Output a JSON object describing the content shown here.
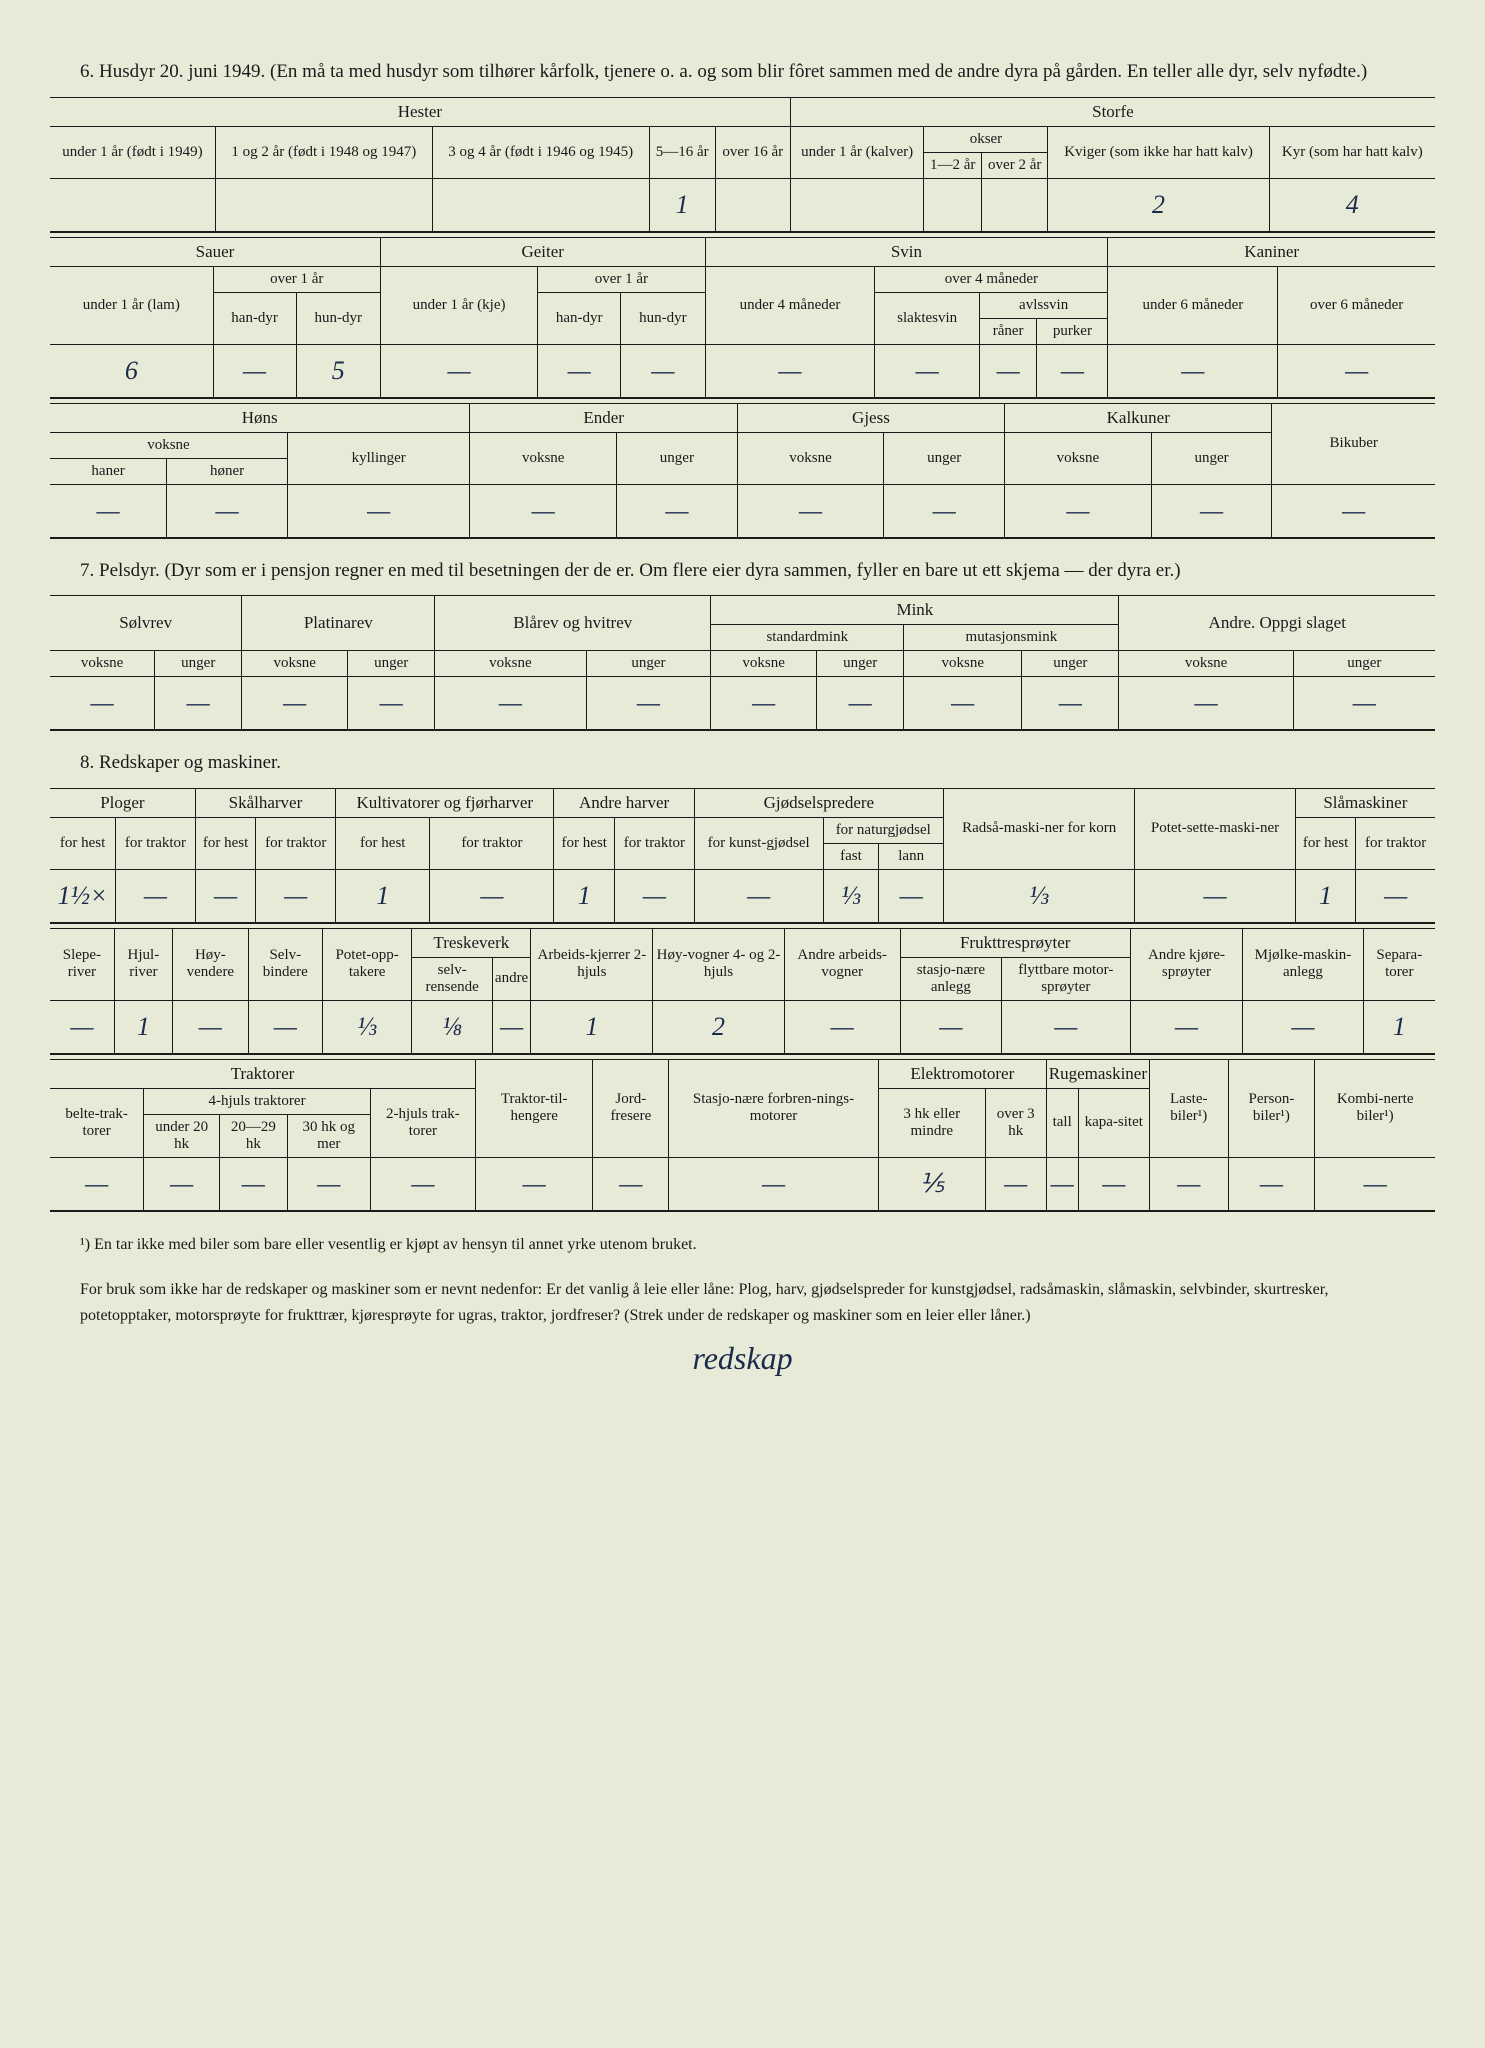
{
  "section6": {
    "title": "6. Husdyr 20. juni 1949. (En må ta med husdyr som tilhører kårfolk, tjenere o. a. og som blir fôret sammen med de andre dyra på gården. En teller alle dyr, selv nyfødte.)",
    "hester": {
      "group": "Hester",
      "cols": [
        "under 1 år (født i 1949)",
        "1 og 2 år (født i 1948 og 1947)",
        "3 og 4 år (født i 1946 og 1945)",
        "5—16 år",
        "over 16 år"
      ],
      "values": [
        "",
        "",
        "",
        "1",
        ""
      ]
    },
    "storfe": {
      "group": "Storfe",
      "under1": "under 1 år (kalver)",
      "okser": {
        "label": "okser",
        "c1": "1—2 år",
        "c2": "over 2 år"
      },
      "kviger": "Kviger (som ikke har hatt kalv)",
      "kyr": "Kyr (som har hatt kalv)",
      "values": [
        "",
        "",
        "",
        "2",
        "4"
      ]
    },
    "sauer": {
      "group": "Sauer",
      "under1": "under 1 år (lam)",
      "over1": "over 1 år",
      "han": "han-dyr",
      "hun": "hun-dyr",
      "values": [
        "6",
        "—",
        "5"
      ]
    },
    "geiter": {
      "group": "Geiter",
      "under1": "under 1 år (kje)",
      "over1": "over 1 år",
      "han": "han-dyr",
      "hun": "hun-dyr",
      "values": [
        "—",
        "—",
        "—"
      ]
    },
    "svin": {
      "group": "Svin",
      "under4": "under 4 måneder",
      "over4": "over 4 måneder",
      "slaktesvin": "slaktesvin",
      "avlssvin": "avlssvin",
      "raner": "råner",
      "purker": "purker",
      "values": [
        "—",
        "—",
        "—",
        "—"
      ]
    },
    "kaniner": {
      "group": "Kaniner",
      "under6": "under 6 måneder",
      "over6": "over 6 måneder",
      "values": [
        "—",
        "—"
      ]
    },
    "hons": {
      "group": "Høns",
      "voksne": "voksne",
      "haner": "haner",
      "honer": "høner",
      "kyllinger": "kyllinger",
      "values": [
        "—",
        "—",
        "—"
      ]
    },
    "ender": {
      "group": "Ender",
      "voksne": "voksne",
      "unger": "unger",
      "values": [
        "—",
        "—"
      ]
    },
    "gjess": {
      "group": "Gjess",
      "voksne": "voksne",
      "unger": "unger",
      "values": [
        "—",
        "—"
      ]
    },
    "kalkuner": {
      "group": "Kalkuner",
      "voksne": "voksne",
      "unger": "unger",
      "values": [
        "—",
        "—"
      ]
    },
    "bikuber": {
      "label": "Bikuber",
      "value": "—"
    }
  },
  "section7": {
    "title": "7. Pelsdyr. (Dyr som er i pensjon regner en med til besetningen der de er. Om flere eier dyra sammen, fyller en bare ut ett skjema — der dyra er.)",
    "groups": {
      "solvrev": "Sølvrev",
      "platinarev": "Platinarev",
      "blarev": "Blårev og hvitrev",
      "mink": "Mink",
      "standardmink": "standardmink",
      "mutasjonsmink": "mutasjonsmink",
      "andre": "Andre. Oppgi slaget"
    },
    "voksne": "voksne",
    "unger": "unger",
    "values": [
      "—",
      "—",
      "—",
      "—",
      "—",
      "—",
      "—",
      "—",
      "—",
      "—",
      "—",
      "—"
    ]
  },
  "section8": {
    "title": "8. Redskaper og maskiner.",
    "row1": {
      "groups": {
        "ploger": "Ploger",
        "skalharver": "Skålharver",
        "kultiv": "Kultivatorer og fjørharver",
        "andreharver": "Andre harver",
        "gjodsel": "Gjødselspredere",
        "radsa": "Radså-maski-ner for korn",
        "potet": "Potet-sette-maski-ner",
        "slamask": "Slåmaskiner"
      },
      "sub": {
        "forhest": "for hest",
        "fortraktor": "for traktor",
        "kunstgj": "for kunst-gjødsel",
        "naturgj": "for naturgjødsel",
        "fast": "fast",
        "lann": "lann"
      },
      "values": [
        "1½×",
        "—",
        "—",
        "—",
        "1",
        "—",
        "1",
        "—",
        "—",
        "⅓",
        "—",
        "⅓",
        "—",
        "1",
        "—"
      ]
    },
    "row2": {
      "groups": {
        "sleperiver": "Slepe-river",
        "hjulriver": "Hjul-river",
        "hoyvendere": "Høy-vendere",
        "selvbindere": "Selv-bindere",
        "potetopp": "Potet-opp-takere",
        "treskeverk": "Treskeverk",
        "selvrens": "selv-rensende",
        "tr_andre": "andre",
        "arbeidskj": "Arbeids-kjerrer 2-hjuls",
        "hoyvogner": "Høy-vogner 4- og 2-hjuls",
        "andrearbv": "Andre arbeids-vogner",
        "fruktspr": "Frukttresprøyter",
        "stasjanl": "stasjo-nære anlegg",
        "flyttbare": "flyttbare motor-sprøyter",
        "andrekjspr": "Andre kjøre-sprøyter",
        "mjolke": "Mjølke-maskin-anlegg",
        "separa": "Separa-torer"
      },
      "values": [
        "—",
        "1",
        "—",
        "—",
        "⅓",
        "⅛",
        "—",
        "1",
        "2",
        "—",
        "—",
        "—",
        "—",
        "—",
        "1"
      ]
    },
    "row3": {
      "groups": {
        "traktorer": "Traktorer",
        "beltetrak": "belte-trak-torer",
        "firehj": "4-hjuls traktorer",
        "under20": "under 20 hk",
        "hk2029": "20—29 hk",
        "hk30mer": "30 hk og mer",
        "tohjuls": "2-hjuls trak-torer",
        "traktilh": "Traktor-til-hengere",
        "jordfres": "Jord-fresere",
        "stasjforbr": "Stasjo-nære forbren-nings-motorer",
        "elektro": "Elektromotorer",
        "el3hk": "3 hk eller mindre",
        "elover3": "over 3 hk",
        "rugemask": "Rugemaskiner",
        "tall": "tall",
        "kapas": "kapa-sitet",
        "lastebiler": "Laste-biler¹)",
        "personbiler": "Person-biler¹)",
        "kombibiler": "Kombi-nerte biler¹)"
      },
      "values": [
        "—",
        "—",
        "—",
        "—",
        "—",
        "—",
        "—",
        "—",
        "⅕",
        "—",
        "—",
        "—",
        "—",
        "—",
        "—"
      ]
    }
  },
  "footnote1": "¹) En tar ikke med biler som bare eller vesentlig er kjøpt av hensyn til annet yrke utenom bruket.",
  "footnote2": "For bruk som ikke har de redskaper og maskiner som er nevnt nedenfor: Er det vanlig å leie eller låne: Plog, harv, gjødselspreder for kunstgjødsel, radsåmaskin, slåmaskin, selvbinder, skurtresker, potetopptaker, motorsprøyte for frukttrær, kjøresprøyte for ugras, traktor, jordfreser? (Strek under de redskaper og maskiner som en leier eller låner.)",
  "handwriting": "redskap"
}
